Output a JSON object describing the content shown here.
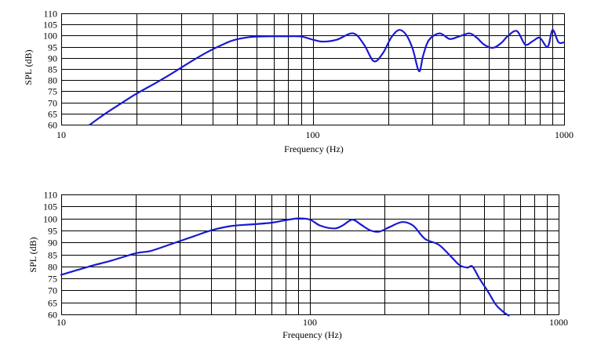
{
  "chart_data": [
    {
      "type": "line",
      "title": "",
      "xlabel": "Frequency (Hz)",
      "ylabel": "SPL (dB)",
      "x_scale": "log",
      "xlim": [
        10,
        1000
      ],
      "ylim": [
        60,
        110
      ],
      "grid": true,
      "x_major_ticks": [
        10,
        100,
        1000
      ],
      "x_tick_labels": [
        "10",
        "100",
        "1000"
      ],
      "y_ticks": [
        60,
        65,
        70,
        75,
        80,
        85,
        90,
        95,
        100,
        105,
        110
      ],
      "y_tick_labels": [
        "60",
        "65",
        "70",
        "75",
        "80",
        "85",
        "90",
        "95",
        "100",
        "105",
        "110"
      ],
      "line_color": "#1a1ad0",
      "series": [
        {
          "x": [
            13,
            15,
            17,
            20,
            24,
            28,
            33,
            38,
            43,
            48,
            55,
            62,
            70,
            80,
            90,
            100,
            110,
            125,
            145,
            160,
            175,
            190,
            205,
            220,
            235,
            250,
            265,
            275,
            290,
            320,
            350,
            380,
            420,
            450,
            480,
            520,
            560,
            600,
            650,
            700,
            750,
            800,
            860,
            900,
            950,
            1000
          ],
          "y": [
            60,
            65,
            69,
            74,
            79,
            83.5,
            88.5,
            92.5,
            95.5,
            97.8,
            99.2,
            99.6,
            99.7,
            99.7,
            99.6,
            98.2,
            97.3,
            98.2,
            101,
            96,
            88.5,
            92,
            99,
            102.5,
            100.5,
            94,
            84,
            91,
            98,
            101,
            98.5,
            99.5,
            101,
            99,
            96,
            94.5,
            96.5,
            100,
            102,
            96,
            97.5,
            99,
            95,
            102.5,
            97,
            97
          ]
        }
      ]
    },
    {
      "type": "line",
      "title": "",
      "xlabel": "Frequency (Hz)",
      "ylabel": "SPL (dB)",
      "x_scale": "log",
      "xlim": [
        10,
        1000
      ],
      "ylim": [
        60,
        110
      ],
      "grid": true,
      "x_major_ticks": [
        10,
        100,
        1000
      ],
      "x_tick_labels": [
        "10",
        "100",
        "1000"
      ],
      "y_ticks": [
        60,
        65,
        70,
        75,
        80,
        85,
        90,
        95,
        100,
        105,
        110
      ],
      "y_tick_labels": [
        "60",
        "65",
        "70",
        "75",
        "80",
        "85",
        "90",
        "95",
        "100",
        "105",
        "110"
      ],
      "line_color": "#1a1ad0",
      "series": [
        {
          "x": [
            10,
            13,
            16,
            20,
            23,
            28,
            34,
            40,
            48,
            58,
            70,
            80,
            90,
            100,
            110,
            125,
            135,
            148,
            160,
            175,
            190,
            210,
            235,
            260,
            290,
            330,
            370,
            400,
            430,
            450,
            480,
            520,
            560,
            600,
            630
          ],
          "y": [
            76.5,
            80,
            82.5,
            85.5,
            86.5,
            89.5,
            92.5,
            95,
            96.8,
            97.5,
            98.2,
            99.3,
            100,
            99.5,
            97,
            95.8,
            97,
            99.5,
            97.5,
            95,
            94.5,
            96.5,
            98.5,
            97,
            91.5,
            89,
            84,
            80.5,
            79.5,
            80,
            75,
            69.5,
            64,
            61,
            59.5
          ]
        }
      ]
    }
  ]
}
